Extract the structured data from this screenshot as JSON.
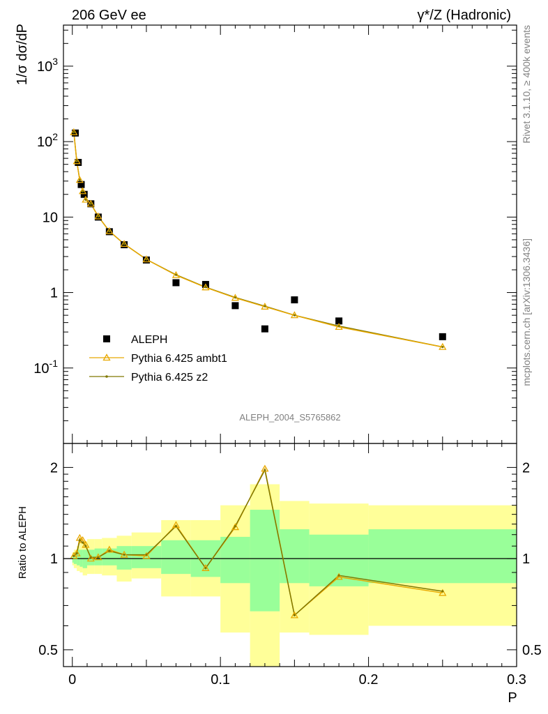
{
  "header": {
    "left": "206 GeV ee",
    "right": "γ*/Z (Hadronic)"
  },
  "side_text": {
    "rivet": "Rivet 3.1.10, ≥ 400k events",
    "mcplots": "mcplots.cern.ch [arXiv:1306.3436]"
  },
  "watermark": "ALEPH_2004_S5765862",
  "colors": {
    "data": "#000000",
    "ambt1": "#e8a800",
    "z2": "#807800",
    "band_inner": "#99ff99",
    "band_outer": "#ffff99"
  },
  "chart_data": [
    {
      "type": "scatter",
      "ylabel": "1/σ dσ/dP",
      "yscale": "log",
      "ylim": [
        0.01,
        3500
      ],
      "xlim": [
        -0.006,
        0.3
      ],
      "ytick_labels": [
        "10^-1",
        "1",
        "10",
        "10^2",
        "10^3"
      ],
      "legend_position": "lower-left",
      "series": [
        {
          "name": "ALEPH",
          "style": "filled-square",
          "x": [
            0.002,
            0.004,
            0.006,
            0.008,
            0.0125,
            0.0175,
            0.025,
            0.035,
            0.05,
            0.07,
            0.09,
            0.11,
            0.13,
            0.15,
            0.18,
            0.25
          ],
          "y": [
            130,
            53,
            27,
            20,
            15,
            10,
            6.4,
            4.3,
            2.7,
            1.35,
            1.28,
            0.67,
            0.33,
            0.8,
            0.42,
            0.26
          ]
        },
        {
          "name": "Pythia 6.425 ambt1",
          "style": "open-triangle-line",
          "x": [
            0.001,
            0.003,
            0.005,
            0.007,
            0.009,
            0.0125,
            0.0175,
            0.025,
            0.035,
            0.05,
            0.07,
            0.09,
            0.11,
            0.13,
            0.15,
            0.18,
            0.25
          ],
          "y": [
            133,
            55,
            31,
            22,
            17,
            15,
            10.2,
            6.5,
            4.4,
            2.75,
            1.7,
            1.17,
            0.85,
            0.65,
            0.5,
            0.35,
            0.19
          ]
        },
        {
          "name": "Pythia 6.425 z2",
          "style": "dot-line",
          "x": [
            0.001,
            0.003,
            0.005,
            0.007,
            0.009,
            0.0125,
            0.0175,
            0.025,
            0.035,
            0.05,
            0.07,
            0.09,
            0.11,
            0.13,
            0.15,
            0.18,
            0.25
          ],
          "y": [
            133,
            55,
            31,
            22,
            17,
            15,
            10.2,
            6.5,
            4.4,
            2.75,
            1.72,
            1.18,
            0.86,
            0.66,
            0.5,
            0.36,
            0.19
          ]
        }
      ]
    },
    {
      "type": "line",
      "ylabel": "Ratio to ALEPH",
      "xlabel": "P",
      "yscale": "log",
      "ylim": [
        0.44,
        2.4
      ],
      "xlim": [
        -0.006,
        0.3
      ],
      "xtick_labels": [
        "0",
        "0.1",
        "0.2",
        "0.3"
      ],
      "ytick_labels": [
        "0.5",
        "1",
        "2"
      ],
      "reference_line": 1,
      "bands": {
        "bins": [
          [
            0,
            0.001
          ],
          [
            0.001,
            0.003
          ],
          [
            0.003,
            0.005
          ],
          [
            0.005,
            0.007
          ],
          [
            0.007,
            0.01
          ],
          [
            0.01,
            0.015
          ],
          [
            0.015,
            0.02
          ],
          [
            0.02,
            0.03
          ],
          [
            0.03,
            0.04
          ],
          [
            0.04,
            0.06
          ],
          [
            0.06,
            0.08
          ],
          [
            0.08,
            0.1
          ],
          [
            0.1,
            0.12
          ],
          [
            0.12,
            0.14
          ],
          [
            0.14,
            0.16
          ],
          [
            0.16,
            0.2
          ],
          [
            0.2,
            0.3
          ]
        ],
        "inner_low": [
          0.97,
          0.96,
          0.95,
          0.94,
          0.93,
          0.95,
          0.95,
          0.95,
          0.92,
          0.93,
          0.89,
          0.87,
          0.83,
          0.67,
          0.83,
          0.81,
          0.83
        ],
        "inner_high": [
          1.03,
          1.05,
          1.07,
          1.07,
          1.07,
          1.07,
          1.08,
          1.08,
          1.1,
          1.1,
          1.15,
          1.15,
          1.18,
          1.45,
          1.25,
          1.2,
          1.25
        ],
        "outer_low": [
          0.95,
          0.93,
          0.91,
          0.9,
          0.88,
          0.89,
          0.89,
          0.88,
          0.84,
          0.86,
          0.75,
          0.75,
          0.57,
          0.36,
          0.57,
          0.56,
          0.6
        ],
        "outer_high": [
          1.05,
          1.07,
          1.1,
          1.13,
          1.14,
          1.16,
          1.16,
          1.17,
          1.19,
          1.22,
          1.34,
          1.34,
          1.5,
          1.76,
          1.55,
          1.52,
          1.5
        ]
      },
      "series": [
        {
          "name": "Pythia 6.425 ambt1",
          "x": [
            0.001,
            0.003,
            0.005,
            0.007,
            0.009,
            0.0125,
            0.0175,
            0.025,
            0.035,
            0.05,
            0.07,
            0.09,
            0.11,
            0.13,
            0.15,
            0.18,
            0.25
          ],
          "y": [
            1.02,
            1.04,
            1.17,
            1.15,
            1.11,
            1.0,
            1.01,
            1.07,
            1.03,
            1.02,
            1.29,
            0.93,
            1.27,
            1.98,
            0.65,
            0.87,
            0.77
          ]
        },
        {
          "name": "Pythia 6.425 z2",
          "x": [
            0.001,
            0.003,
            0.005,
            0.007,
            0.009,
            0.0125,
            0.0175,
            0.025,
            0.035,
            0.05,
            0.07,
            0.09,
            0.11,
            0.13,
            0.15,
            0.18,
            0.25
          ],
          "y": [
            1.02,
            1.04,
            1.15,
            1.13,
            1.1,
            1.01,
            1.01,
            1.06,
            1.03,
            1.03,
            1.28,
            0.93,
            1.28,
            1.96,
            0.65,
            0.88,
            0.78
          ]
        }
      ]
    }
  ]
}
